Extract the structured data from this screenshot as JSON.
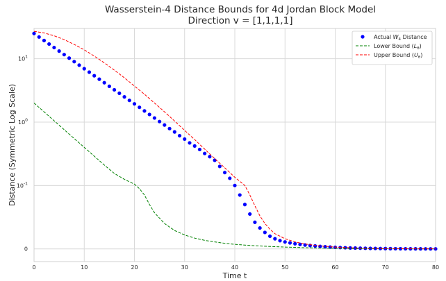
{
  "chart_data": {
    "type": "line",
    "title": "Wasserstein-4 Distance Bounds for 4d Jordan Block Model",
    "subtitle": "Direction v = [1,1,1,1]",
    "xlabel": "Time t",
    "ylabel": "Distance (Symmetric Log Scale)",
    "xlim": [
      0,
      80
    ],
    "ylim": [
      -0.02,
      30
    ],
    "yscale": "symlog",
    "linthresh": 0.1,
    "x_ticks": [
      "0",
      "10",
      "20",
      "30",
      "40",
      "50",
      "60",
      "70",
      "80"
    ],
    "y_ticks": [
      {
        "value": 0,
        "label": "0"
      },
      {
        "value": 0.1,
        "label": "10",
        "exp": "-1"
      },
      {
        "value": 1,
        "label": "10",
        "exp": "0"
      },
      {
        "value": 10,
        "label": "10",
        "exp": "1"
      }
    ],
    "grid": true,
    "legend_position": "upper right",
    "colors": {
      "actual": "#0000ff",
      "lower": "#008000",
      "upper": "#ff0000"
    },
    "series": [
      {
        "name": "Actual W4 Distance",
        "legend_main": "Actual ",
        "legend_math": "W",
        "legend_sub": "4",
        "legend_tail": " Distance",
        "style": "dots",
        "x": [
          0,
          1,
          2,
          3,
          4,
          5,
          6,
          7,
          8,
          9,
          10,
          11,
          12,
          13,
          14,
          15,
          16,
          17,
          18,
          19,
          20,
          21,
          22,
          23,
          24,
          25,
          26,
          27,
          28,
          29,
          30,
          31,
          32,
          33,
          34,
          35,
          36,
          37,
          38,
          39,
          40,
          41,
          42,
          43,
          44,
          45,
          46,
          47,
          48,
          49,
          50,
          51,
          52,
          53,
          54,
          55,
          56,
          57,
          58,
          59,
          60,
          61,
          62,
          63,
          64,
          65,
          66,
          67,
          68,
          69,
          70,
          71,
          72,
          73,
          74,
          75,
          76,
          77,
          78,
          79,
          80
        ],
        "y": [
          25.0,
          22.0,
          19.36,
          17.04,
          14.99,
          13.19,
          11.61,
          10.22,
          8.99,
          7.91,
          6.96,
          6.13,
          5.39,
          4.75,
          4.18,
          3.67,
          3.23,
          2.85,
          2.5,
          2.2,
          1.94,
          1.71,
          1.5,
          1.32,
          1.16,
          1.02,
          0.9,
          0.79,
          0.7,
          0.61,
          0.54,
          0.47,
          0.42,
          0.37,
          0.32,
          0.285,
          0.25,
          0.2,
          0.16,
          0.13,
          0.1,
          0.085,
          0.07,
          0.055,
          0.042,
          0.033,
          0.026,
          0.02,
          0.016,
          0.013,
          0.011,
          0.0095,
          0.0082,
          0.0071,
          0.0061,
          0.0053,
          0.0046,
          0.0039,
          0.0034,
          0.0029,
          0.0025,
          0.0021,
          0.0018,
          0.0015,
          0.0013,
          0.0011,
          0.001,
          0.0008,
          0.0007,
          0.0006,
          0.0005,
          0.0004,
          0.0003,
          0.00025,
          0.0002,
          0.00015,
          0.0001,
          8e-05,
          6e-05,
          4e-05,
          2e-05
        ]
      },
      {
        "name": "Lower Bound (Lθ)",
        "legend_main": "Lower Bound (",
        "legend_math": "L",
        "legend_sub": "θ",
        "legend_tail": ")",
        "style": "dashed",
        "x": [
          0,
          2,
          4,
          6,
          8,
          10,
          12,
          14,
          16,
          18,
          20,
          21,
          22,
          23,
          24,
          26,
          28,
          30,
          32,
          34,
          36,
          38,
          40,
          42,
          44,
          46,
          48,
          50,
          52,
          54,
          56,
          58,
          60,
          62,
          65,
          70,
          75,
          80
        ],
        "y": [
          2.0,
          1.45,
          1.05,
          0.76,
          0.55,
          0.4,
          0.29,
          0.21,
          0.155,
          0.125,
          0.105,
          0.095,
          0.085,
          0.07,
          0.057,
          0.04,
          0.029,
          0.022,
          0.017,
          0.0135,
          0.011,
          0.0088,
          0.0072,
          0.006,
          0.005,
          0.0042,
          0.0035,
          0.0029,
          0.0024,
          0.0019,
          0.0015,
          0.0012,
          0.0009,
          0.0007,
          0.0005,
          0.0003,
          0.00015,
          5e-05
        ]
      },
      {
        "name": "Upper Bound (Uθ)",
        "legend_main": "Upper Bound (",
        "legend_math": "U",
        "legend_sub": "θ",
        "legend_tail": ")",
        "style": "dashed",
        "x": [
          0,
          2,
          4,
          6,
          8,
          10,
          12,
          14,
          16,
          18,
          20,
          22,
          24,
          26,
          28,
          30,
          32,
          34,
          36,
          38,
          40,
          42,
          43,
          44,
          45,
          46,
          47,
          48,
          50,
          52,
          54,
          56,
          58,
          60,
          62,
          65,
          70,
          75,
          80
        ],
        "y": [
          27.0,
          25.5,
          23.0,
          20.0,
          16.8,
          13.8,
          11.0,
          8.6,
          6.6,
          5.0,
          3.7,
          2.75,
          2.0,
          1.45,
          1.04,
          0.74,
          0.53,
          0.375,
          0.265,
          0.19,
          0.135,
          0.1,
          0.085,
          0.068,
          0.052,
          0.04,
          0.031,
          0.024,
          0.016,
          0.011,
          0.0078,
          0.0056,
          0.004,
          0.0029,
          0.0021,
          0.0012,
          0.0005,
          0.0002,
          5e-05
        ]
      }
    ]
  }
}
